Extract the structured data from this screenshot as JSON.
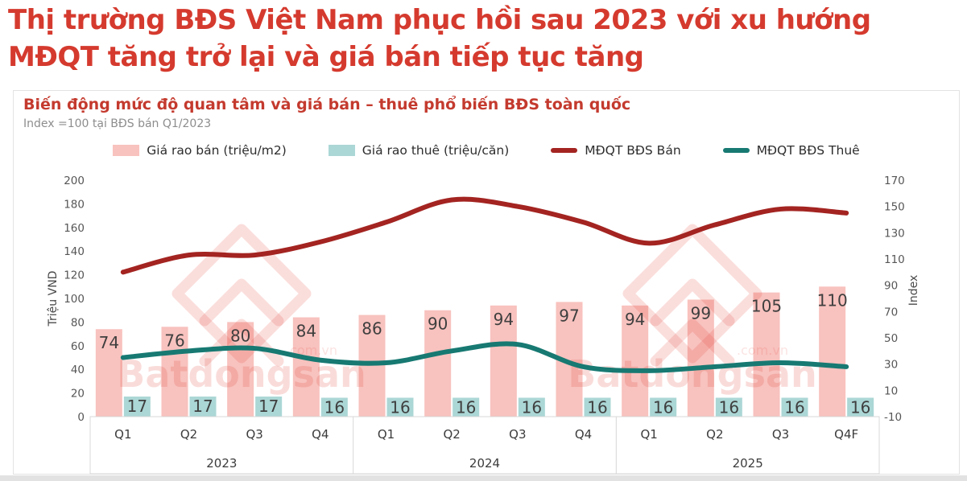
{
  "page": {
    "title_lines": [
      "Thị trường BĐS Việt Nam phục hồi sau 2023 với xu hướng",
      "MĐQT tăng trở lại và giá bán tiếp tục tăng"
    ]
  },
  "chart": {
    "title": "Biến động mức độ quan tâm và giá bán – thuê phổ biến BĐS toàn quốc",
    "subtitle": "Index =100 tại BĐS bán Q1/2023"
  },
  "watermark": {
    "brand": "Batdongsan",
    "domain": ".com.vn",
    "logo_icon": "double-chevron-house-icon"
  },
  "colors": {
    "title_red": "#d53a2e",
    "chart_title_red": "#c43a2e",
    "bar_sale_pink": "#f8c2be",
    "bar_rent_teal": "#abd7d6",
    "line_sale_red": "#a32421",
    "line_rent_teal": "#177972",
    "watermark_pink": "rgba(224,60,49,0.17)",
    "axis_text": "#565656",
    "value_label": "#3f3f3f",
    "box_border": "#d8d8d8"
  },
  "chart_data": {
    "type": "combo_bar_line",
    "categories": [
      "Q1",
      "Q2",
      "Q3",
      "Q4",
      "Q1",
      "Q2",
      "Q3",
      "Q4",
      "Q1",
      "Q2",
      "Q3",
      "Q4F"
    ],
    "year_groups": [
      {
        "label": "2023",
        "quarters": 4
      },
      {
        "label": "2024",
        "quarters": 4
      },
      {
        "label": "2025",
        "quarters": 4
      }
    ],
    "left_axis": {
      "title": "Triệu VND",
      "min": 0,
      "max": 200,
      "step": 20,
      "ticks": [
        0,
        20,
        40,
        60,
        80,
        100,
        120,
        140,
        160,
        180,
        200
      ]
    },
    "right_axis": {
      "title": "Index",
      "min": -10,
      "max": 170,
      "step": 20,
      "ticks": [
        -10,
        10,
        30,
        50,
        70,
        90,
        110,
        130,
        150,
        170
      ]
    },
    "grid": false,
    "legend_position": "top",
    "series": [
      {
        "name": "Giá rao bán (triệu/m2)",
        "type": "bar",
        "axis": "left",
        "color": "#f8c2be",
        "values": [
          74,
          76,
          80,
          84,
          86,
          90,
          94,
          97,
          94,
          99,
          105,
          110
        ],
        "labels_shown": true
      },
      {
        "name": "Giá rao thuê (triệu/căn)",
        "type": "bar",
        "axis": "left",
        "color": "#abd7d6",
        "values": [
          17,
          17,
          17,
          16,
          16,
          16,
          16,
          16,
          16,
          16,
          16,
          16
        ],
        "labels_shown": true
      },
      {
        "name": "MĐQT BĐS Bán",
        "type": "line",
        "axis": "right",
        "color": "#a32421",
        "values": [
          100,
          113,
          113,
          123,
          138,
          155,
          150,
          138,
          122,
          136,
          148,
          145
        ],
        "labels_shown": false
      },
      {
        "name": "MĐQT BĐS Thuê",
        "type": "line",
        "axis": "right",
        "color": "#177972",
        "values": [
          35,
          40,
          42,
          33,
          31,
          40,
          45,
          28,
          25,
          28,
          31,
          28
        ],
        "labels_shown": false
      }
    ]
  }
}
